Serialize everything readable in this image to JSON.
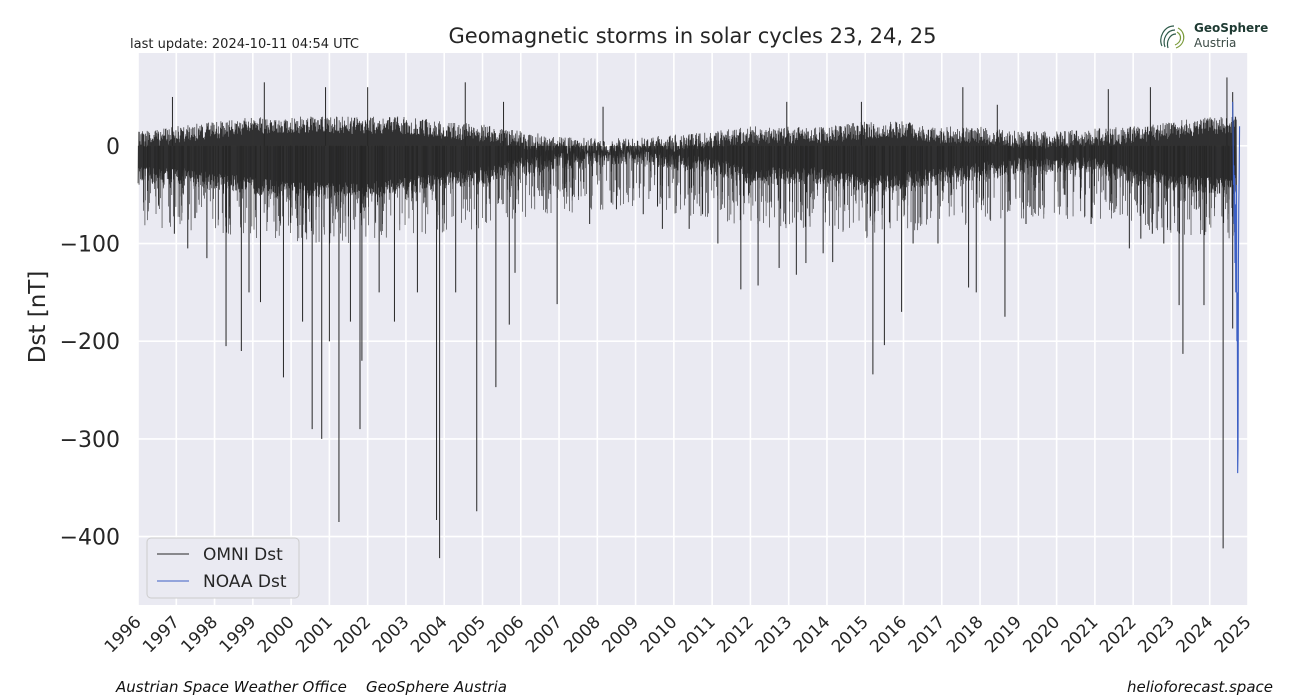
{
  "header": {
    "last_update": "last update: 2024-10-11 04:54 UTC",
    "logo_line1": "GeoSphere",
    "logo_line2": "Austria"
  },
  "footer": {
    "left_1": "Austrian Space Weather Office",
    "left_2": "GeoSphere Austria",
    "right": "helioforecast.space"
  },
  "colors": {
    "plot_bg": "#eaeaf2",
    "grid": "#ffffff",
    "omni": "#262626",
    "noaa": "#3c5fc4"
  },
  "chart_data": {
    "type": "line",
    "title": "Geomagnetic storms in solar cycles 23, 24, 25",
    "xlabel": "",
    "ylabel": "Dst [nT]",
    "xlim": [
      1996.0,
      2025.0
    ],
    "ylim": [
      -470,
      95
    ],
    "yticks": [
      0,
      -100,
      -200,
      -300,
      -400
    ],
    "ytick_labels": [
      "0",
      "−100",
      "−200",
      "−300",
      "−400"
    ],
    "xticks": [
      1996,
      1997,
      1998,
      1999,
      2000,
      2001,
      2002,
      2003,
      2004,
      2005,
      2006,
      2007,
      2008,
      2009,
      2010,
      2011,
      2012,
      2013,
      2014,
      2015,
      2016,
      2017,
      2018,
      2019,
      2020,
      2021,
      2022,
      2023,
      2024,
      2025
    ],
    "xtick_labels": [
      "1996",
      "1997",
      "1998",
      "1999",
      "2000",
      "2001",
      "2002",
      "2003",
      "2004",
      "2005",
      "2006",
      "2007",
      "2008",
      "2009",
      "2010",
      "2011",
      "2012",
      "2013",
      "2014",
      "2015",
      "2016",
      "2017",
      "2018",
      "2019",
      "2020",
      "2021",
      "2022",
      "2023",
      "2024",
      "2025"
    ],
    "grid": true,
    "legend": {
      "position": "bottom-left",
      "entries": [
        "OMNI Dst",
        "NOAA Dst"
      ]
    },
    "series": [
      {
        "name": "OMNI Dst",
        "color": "#262626",
        "band": [
          [
            1996.0,
            -40,
            15
          ],
          [
            1997.0,
            -40,
            20
          ],
          [
            1998.0,
            -45,
            25
          ],
          [
            1999.0,
            -50,
            30
          ],
          [
            2000.0,
            -55,
            30
          ],
          [
            2001.0,
            -55,
            30
          ],
          [
            2002.0,
            -55,
            30
          ],
          [
            2003.0,
            -50,
            30
          ],
          [
            2004.0,
            -45,
            25
          ],
          [
            2005.0,
            -40,
            22
          ],
          [
            2006.0,
            -30,
            15
          ],
          [
            2007.0,
            -25,
            10
          ],
          [
            2008.0,
            -22,
            8
          ],
          [
            2009.0,
            -18,
            8
          ],
          [
            2010.0,
            -25,
            12
          ],
          [
            2011.0,
            -30,
            15
          ],
          [
            2012.0,
            -40,
            20
          ],
          [
            2013.0,
            -40,
            20
          ],
          [
            2014.0,
            -40,
            20
          ],
          [
            2015.0,
            -50,
            25
          ],
          [
            2016.0,
            -45,
            25
          ],
          [
            2017.0,
            -40,
            20
          ],
          [
            2018.0,
            -35,
            20
          ],
          [
            2019.0,
            -30,
            15
          ],
          [
            2020.0,
            -30,
            15
          ],
          [
            2021.0,
            -30,
            18
          ],
          [
            2022.0,
            -40,
            20
          ],
          [
            2023.0,
            -45,
            25
          ],
          [
            2024.0,
            -50,
            30
          ],
          [
            2024.7,
            -50,
            30
          ]
        ],
        "spikes": [
          [
            1996.95,
            -90
          ],
          [
            1997.3,
            -105
          ],
          [
            1997.8,
            -115
          ],
          [
            1998.3,
            -205
          ],
          [
            1998.7,
            -210
          ],
          [
            1998.9,
            -150
          ],
          [
            1999.2,
            -160
          ],
          [
            1999.8,
            -237
          ],
          [
            2000.3,
            -180
          ],
          [
            2000.55,
            -290
          ],
          [
            2000.8,
            -300
          ],
          [
            2001.0,
            -200
          ],
          [
            2001.25,
            -385
          ],
          [
            2001.55,
            -180
          ],
          [
            2001.8,
            -290
          ],
          [
            2001.85,
            -220
          ],
          [
            2002.3,
            -150
          ],
          [
            2002.7,
            -180
          ],
          [
            2003.3,
            -150
          ],
          [
            2003.8,
            -383
          ],
          [
            2003.88,
            -422
          ],
          [
            2004.3,
            -150
          ],
          [
            2004.85,
            -374
          ],
          [
            2005.35,
            -247
          ],
          [
            2005.7,
            -183
          ],
          [
            2005.85,
            -130
          ],
          [
            2006.95,
            -162
          ],
          [
            2007.8,
            -80
          ],
          [
            2008.5,
            -65
          ],
          [
            2009.2,
            -70
          ],
          [
            2009.7,
            -85
          ],
          [
            2010.4,
            -85
          ],
          [
            2010.75,
            -70
          ],
          [
            2011.15,
            -100
          ],
          [
            2011.75,
            -147
          ],
          [
            2012.2,
            -143
          ],
          [
            2012.75,
            -125
          ],
          [
            2013.2,
            -132
          ],
          [
            2013.45,
            -120
          ],
          [
            2013.9,
            -110
          ],
          [
            2014.15,
            -119
          ],
          [
            2015.2,
            -234
          ],
          [
            2015.5,
            -204
          ],
          [
            2015.95,
            -170
          ],
          [
            2016.25,
            -100
          ],
          [
            2016.9,
            -100
          ],
          [
            2017.7,
            -145
          ],
          [
            2017.9,
            -150
          ],
          [
            2018.65,
            -175
          ],
          [
            2019.2,
            -80
          ],
          [
            2020.2,
            -50
          ],
          [
            2020.9,
            -80
          ],
          [
            2021.9,
            -105
          ],
          [
            2022.2,
            -95
          ],
          [
            2022.5,
            -90
          ],
          [
            2022.8,
            -100
          ],
          [
            2023.2,
            -163
          ],
          [
            2023.3,
            -213
          ],
          [
            2023.85,
            -163
          ],
          [
            2024.35,
            -412
          ],
          [
            2024.6,
            -187
          ]
        ],
        "peaks": [
          [
            1996.9,
            50
          ],
          [
            1999.3,
            65
          ],
          [
            2000.9,
            60
          ],
          [
            2002.0,
            60
          ],
          [
            2004.55,
            65
          ],
          [
            2005.55,
            45
          ],
          [
            2008.15,
            40
          ],
          [
            2012.95,
            45
          ],
          [
            2014.9,
            45
          ],
          [
            2017.55,
            60
          ],
          [
            2018.45,
            42
          ],
          [
            2021.35,
            58
          ],
          [
            2022.45,
            60
          ],
          [
            2024.45,
            70
          ],
          [
            2024.6,
            55
          ]
        ]
      },
      {
        "name": "NOAA Dst",
        "color": "#3c5fc4",
        "points": [
          [
            2024.6,
            45
          ],
          [
            2024.61,
            10
          ],
          [
            2024.62,
            -40
          ],
          [
            2024.63,
            -20
          ],
          [
            2024.64,
            -80
          ],
          [
            2024.65,
            -30
          ],
          [
            2024.66,
            -120
          ],
          [
            2024.67,
            -60
          ],
          [
            2024.68,
            -150
          ],
          [
            2024.69,
            -90
          ],
          [
            2024.7,
            -40
          ],
          [
            2024.71,
            -200
          ],
          [
            2024.72,
            -150
          ],
          [
            2024.73,
            -335
          ],
          [
            2024.74,
            -310
          ],
          [
            2024.75,
            -120
          ],
          [
            2024.76,
            -60
          ],
          [
            2024.77,
            -30
          ],
          [
            2024.78,
            20
          ]
        ]
      }
    ]
  }
}
